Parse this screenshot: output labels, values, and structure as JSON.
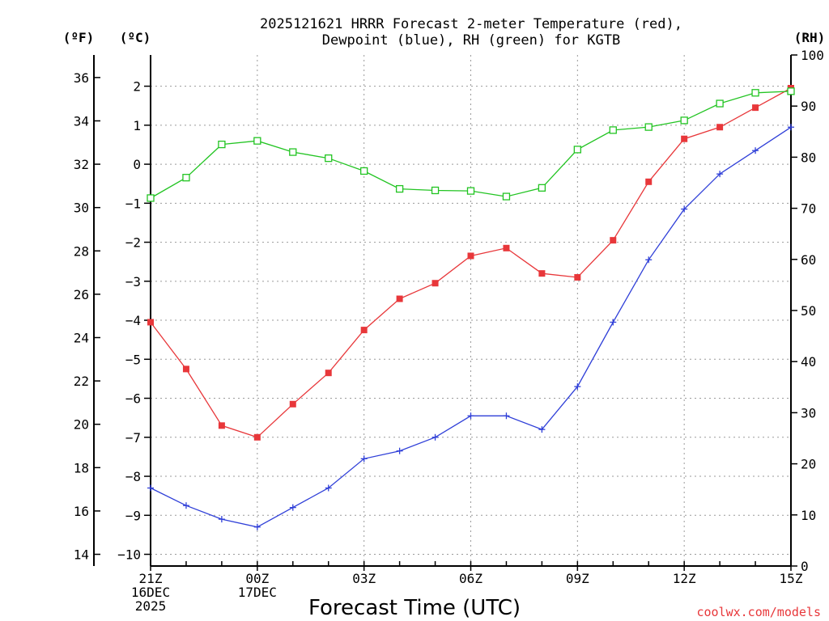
{
  "chart_data": {
    "type": "line",
    "title_line1": "2025121621 HRRR Forecast 2-meter Temperature (red),",
    "title_line2": "Dewpoint (blue), RH (green) for KGTB",
    "xlabel": "Forecast Time (UTC)",
    "credit": "coolwx.com/models",
    "unit_f": "(ºF)",
    "unit_c": "(ºC)",
    "unit_rh": "(RH)",
    "grid": true,
    "x": [
      0,
      1,
      2,
      3,
      4,
      5,
      6,
      7,
      8,
      9,
      10,
      11,
      12,
      13,
      14,
      15,
      16,
      17,
      18
    ],
    "xlim": [
      0,
      18
    ],
    "x_ticks": [
      {
        "x": 0,
        "lines": [
          "21Z",
          "16DEC",
          "2025"
        ]
      },
      {
        "x": 3,
        "lines": [
          "00Z",
          "17DEC"
        ]
      },
      {
        "x": 6,
        "lines": [
          "03Z"
        ]
      },
      {
        "x": 9,
        "lines": [
          "06Z"
        ]
      },
      {
        "x": 12,
        "lines": [
          "09Z"
        ]
      },
      {
        "x": 15,
        "lines": [
          "12Z"
        ]
      },
      {
        "x": 18,
        "lines": [
          "15Z"
        ]
      }
    ],
    "celsius_axis": {
      "lim": [
        -10.3,
        2.8
      ],
      "ticks": [
        "2",
        "1",
        "0",
        "−1",
        "−2",
        "−3",
        "−4",
        "−5",
        "−6",
        "−7",
        "−8",
        "−9",
        "−10"
      ]
    },
    "fahrenheit_axis": {
      "ticks": [
        "36",
        "34",
        "32",
        "30",
        "28",
        "26",
        "24",
        "22",
        "20",
        "18",
        "16",
        "14"
      ]
    },
    "rh_axis": {
      "lim": [
        0,
        100
      ],
      "ticks": [
        "100",
        "90",
        "80",
        "70",
        "60",
        "50",
        "40",
        "30",
        "20",
        "10",
        "0"
      ]
    },
    "series": [
      {
        "name": "Temperature",
        "unit": "C",
        "color": "#e8373a",
        "marker": "filled-square",
        "values": [
          -4.05,
          -5.25,
          -6.7,
          -7.0,
          -6.15,
          -5.35,
          -4.25,
          -3.45,
          -3.05,
          -2.35,
          -2.15,
          -2.8,
          -2.9,
          -1.95,
          -0.45,
          0.65,
          0.95,
          1.45,
          1.95
        ]
      },
      {
        "name": "Dewpoint",
        "unit": "C",
        "color": "#2f3fd8",
        "marker": "plus",
        "values": [
          -8.3,
          -8.75,
          -9.1,
          -9.3,
          -8.8,
          -8.3,
          -7.55,
          -7.35,
          -7.0,
          -6.45,
          -6.45,
          -6.8,
          -5.7,
          -4.05,
          -2.45,
          -1.15,
          -0.25,
          0.35,
          0.95
        ]
      },
      {
        "name": "RH",
        "unit": "%",
        "color": "#22c422",
        "marker": "open-square",
        "values": [
          72,
          76,
          82.5,
          83.2,
          81,
          79.8,
          77.3,
          73.8,
          73.5,
          73.4,
          72.3,
          74,
          81.5,
          85.3,
          85.9,
          87.2,
          90.5,
          92.6,
          92.9
        ]
      }
    ]
  }
}
